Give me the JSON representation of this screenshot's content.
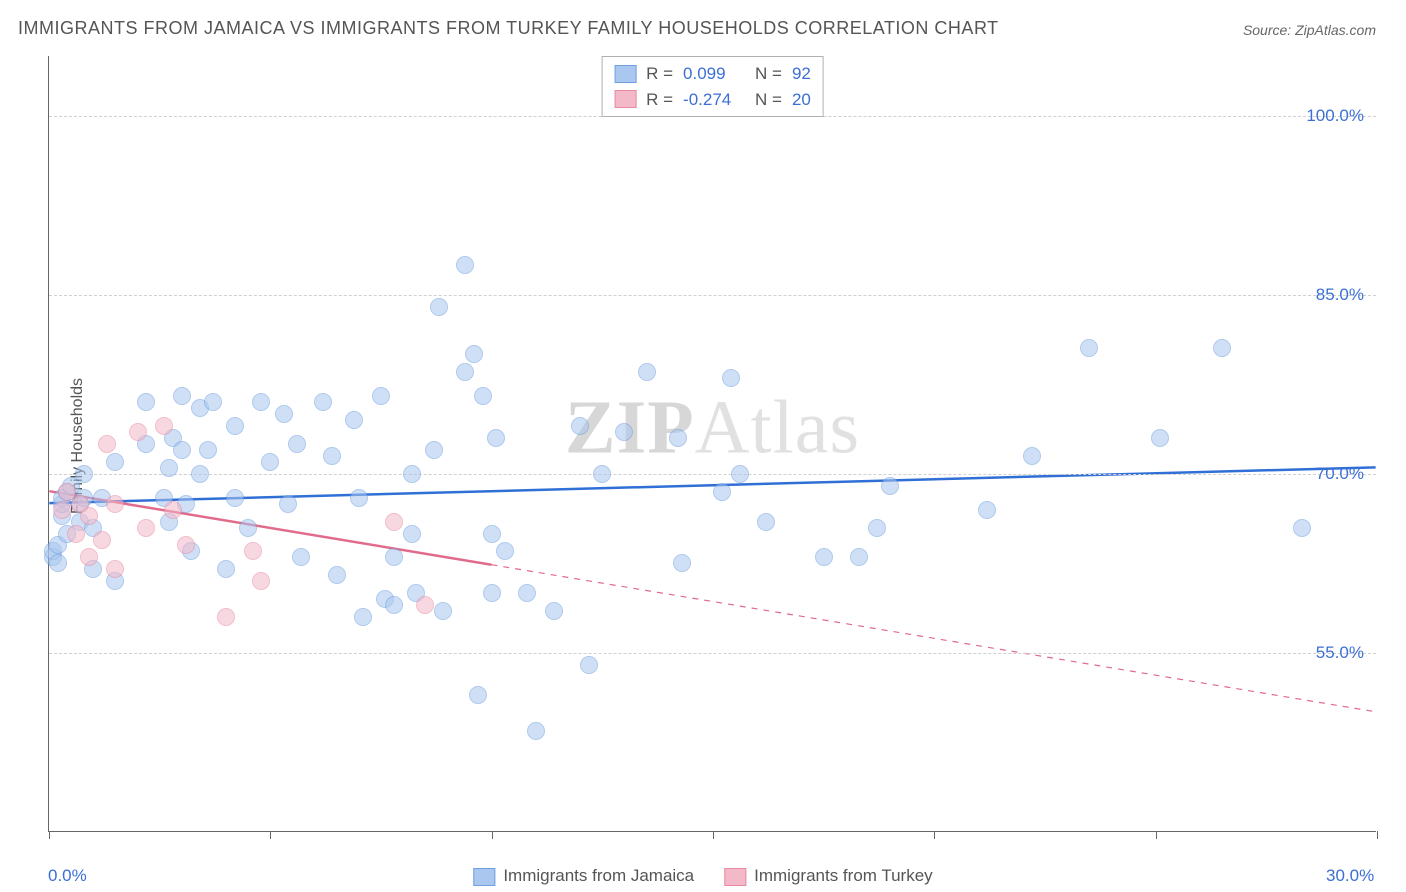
{
  "title": "IMMIGRANTS FROM JAMAICA VS IMMIGRANTS FROM TURKEY FAMILY HOUSEHOLDS CORRELATION CHART",
  "source": "Source: ZipAtlas.com",
  "ylabel": "Family Households",
  "watermark_bold": "ZIP",
  "watermark_light": "Atlas",
  "chart": {
    "type": "scatter",
    "background_color": "#ffffff",
    "grid_color": "#d0d0d0",
    "axis_color": "#666666",
    "xlim": [
      0,
      30
    ],
    "ylim": [
      40,
      105
    ],
    "x_ticks": [
      0,
      5,
      10,
      15,
      20,
      25,
      30
    ],
    "x_tick_labels_shown": {
      "0": "0.0%",
      "30": "30.0%"
    },
    "y_gridlines": [
      55,
      70,
      85,
      100
    ],
    "y_tick_labels": {
      "55": "55.0%",
      "70": "70.0%",
      "85": "85.0%",
      "100": "100.0%"
    },
    "label_color": "#3b6fd6",
    "label_fontsize": 17,
    "title_fontsize": 18,
    "title_color": "#555555",
    "marker_radius": 9,
    "marker_opacity": 0.55,
    "marker_stroke_width": 1.5
  },
  "series": [
    {
      "name": "Immigrants from Jamaica",
      "fill_color": "#a9c7ef",
      "stroke_color": "#6fa0e0",
      "line_color": "#2f6fd6",
      "R": "0.099",
      "N": "92",
      "trend": {
        "x1": 0,
        "y1": 67.5,
        "x2": 30,
        "y2": 70.5,
        "observed_xmax": 30,
        "dash_extrapolate": false
      },
      "points": [
        [
          0.1,
          63.0
        ],
        [
          0.1,
          63.5
        ],
        [
          0.2,
          64.0
        ],
        [
          0.2,
          62.5
        ],
        [
          0.3,
          66.5
        ],
        [
          0.3,
          67.5
        ],
        [
          0.3,
          68.0
        ],
        [
          0.4,
          68.5
        ],
        [
          0.4,
          65.0
        ],
        [
          0.5,
          69.0
        ],
        [
          0.7,
          66.0
        ],
        [
          0.7,
          67.5
        ],
        [
          0.8,
          68.0
        ],
        [
          0.8,
          70.0
        ],
        [
          1.0,
          65.5
        ],
        [
          1.0,
          62.0
        ],
        [
          1.2,
          68.0
        ],
        [
          1.5,
          61.0
        ],
        [
          1.5,
          71.0
        ],
        [
          2.2,
          72.5
        ],
        [
          2.2,
          76.0
        ],
        [
          2.6,
          68.0
        ],
        [
          2.7,
          66.0
        ],
        [
          2.7,
          70.5
        ],
        [
          2.8,
          73.0
        ],
        [
          3.0,
          76.5
        ],
        [
          3.0,
          72.0
        ],
        [
          3.1,
          67.5
        ],
        [
          3.2,
          63.5
        ],
        [
          3.4,
          75.5
        ],
        [
          3.4,
          70.0
        ],
        [
          3.6,
          72.0
        ],
        [
          3.7,
          76.0
        ],
        [
          4.0,
          62.0
        ],
        [
          4.2,
          68.0
        ],
        [
          4.2,
          74.0
        ],
        [
          4.5,
          65.5
        ],
        [
          4.8,
          76.0
        ],
        [
          5.0,
          71.0
        ],
        [
          5.3,
          75.0
        ],
        [
          5.4,
          67.5
        ],
        [
          5.6,
          72.5
        ],
        [
          5.7,
          63.0
        ],
        [
          6.2,
          76.0
        ],
        [
          6.4,
          71.5
        ],
        [
          6.5,
          61.5
        ],
        [
          6.9,
          74.5
        ],
        [
          7.0,
          68.0
        ],
        [
          7.1,
          58.0
        ],
        [
          7.5,
          76.5
        ],
        [
          7.6,
          59.5
        ],
        [
          7.8,
          63.0
        ],
        [
          7.8,
          59.0
        ],
        [
          8.2,
          65.0
        ],
        [
          8.2,
          70.0
        ],
        [
          8.3,
          60.0
        ],
        [
          8.7,
          72.0
        ],
        [
          8.8,
          84.0
        ],
        [
          8.9,
          58.5
        ],
        [
          9.4,
          87.5
        ],
        [
          9.4,
          78.5
        ],
        [
          9.6,
          80.0
        ],
        [
          9.7,
          51.5
        ],
        [
          9.8,
          76.5
        ],
        [
          10.0,
          65.0
        ],
        [
          10.0,
          60.0
        ],
        [
          10.1,
          73.0
        ],
        [
          10.3,
          63.5
        ],
        [
          10.8,
          60.0
        ],
        [
          11.0,
          48.5
        ],
        [
          11.4,
          58.5
        ],
        [
          12.0,
          74.0
        ],
        [
          12.2,
          54.0
        ],
        [
          12.5,
          70.0
        ],
        [
          13.0,
          73.5
        ],
        [
          13.5,
          78.5
        ],
        [
          14.2,
          73.0
        ],
        [
          14.3,
          62.5
        ],
        [
          15.2,
          68.5
        ],
        [
          15.4,
          78.0
        ],
        [
          15.6,
          70.0
        ],
        [
          16.2,
          66.0
        ],
        [
          17.5,
          63.0
        ],
        [
          18.3,
          63.0
        ],
        [
          18.7,
          65.5
        ],
        [
          19.0,
          69.0
        ],
        [
          21.2,
          67.0
        ],
        [
          22.2,
          71.5
        ],
        [
          23.5,
          80.5
        ],
        [
          25.1,
          73.0
        ],
        [
          26.5,
          80.5
        ],
        [
          28.3,
          65.5
        ]
      ]
    },
    {
      "name": "Immigrants from Turkey",
      "fill_color": "#f4b9c8",
      "stroke_color": "#e88aa2",
      "line_color": "#e06b8a",
      "R": "-0.274",
      "N": "20",
      "trend": {
        "x1": 0,
        "y1": 68.5,
        "x2": 30,
        "y2": 50.0,
        "observed_xmax": 10.0,
        "dash_extrapolate": true
      },
      "points": [
        [
          0.3,
          67.0
        ],
        [
          0.4,
          68.5
        ],
        [
          0.6,
          65.0
        ],
        [
          0.7,
          67.5
        ],
        [
          0.9,
          66.5
        ],
        [
          0.9,
          63.0
        ],
        [
          1.2,
          64.5
        ],
        [
          1.3,
          72.5
        ],
        [
          1.5,
          67.5
        ],
        [
          1.5,
          62.0
        ],
        [
          2.0,
          73.5
        ],
        [
          2.2,
          65.5
        ],
        [
          2.6,
          74.0
        ],
        [
          2.8,
          67.0
        ],
        [
          3.1,
          64.0
        ],
        [
          4.0,
          58.0
        ],
        [
          4.6,
          63.5
        ],
        [
          4.8,
          61.0
        ],
        [
          7.8,
          66.0
        ],
        [
          8.5,
          59.0
        ]
      ]
    }
  ],
  "legend_top": {
    "rows": [
      {
        "swatch_fill": "#a9c7ef",
        "swatch_stroke": "#6fa0e0",
        "r_label": "R =",
        "r_val": "0.099",
        "n_label": "N =",
        "n_val": "92"
      },
      {
        "swatch_fill": "#f4b9c8",
        "swatch_stroke": "#e88aa2",
        "r_label": "R =",
        "r_val": "-0.274",
        "n_label": "N =",
        "n_val": "20"
      }
    ]
  },
  "legend_bottom": {
    "items": [
      {
        "swatch_fill": "#a9c7ef",
        "swatch_stroke": "#6fa0e0",
        "label": "Immigrants from Jamaica"
      },
      {
        "swatch_fill": "#f4b9c8",
        "swatch_stroke": "#e88aa2",
        "label": "Immigrants from Turkey"
      }
    ]
  }
}
